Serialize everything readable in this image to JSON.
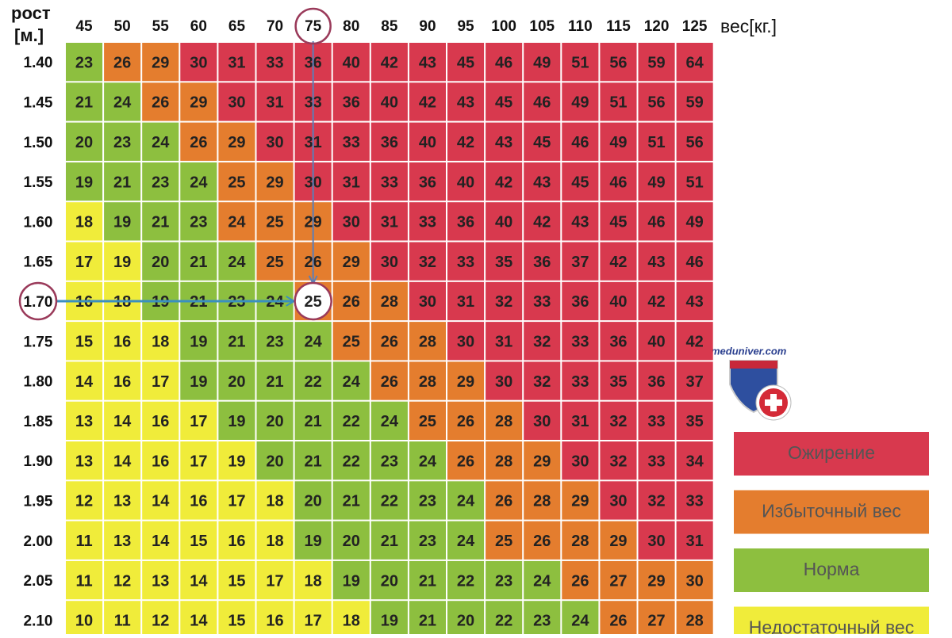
{
  "header": {
    "height_label": "рост",
    "height_unit": "[м.]",
    "weight_label": "вес[кг.]"
  },
  "weights": [
    45,
    50,
    55,
    60,
    65,
    70,
    75,
    80,
    85,
    90,
    95,
    100,
    105,
    110,
    115,
    120,
    125
  ],
  "rows": [
    {
      "height": "1.40",
      "values": [
        23,
        26,
        29,
        30,
        31,
        33,
        36,
        40,
        42,
        43,
        45,
        46,
        49,
        51,
        56,
        59,
        64
      ],
      "levels": [
        2,
        1,
        1,
        0,
        0,
        0,
        0,
        0,
        0,
        0,
        0,
        0,
        0,
        0,
        0,
        0,
        0
      ]
    },
    {
      "height": "1.45",
      "values": [
        21,
        24,
        26,
        29,
        30,
        31,
        33,
        36,
        40,
        42,
        43,
        45,
        46,
        49,
        51,
        56,
        59
      ],
      "levels": [
        2,
        2,
        1,
        1,
        0,
        0,
        0,
        0,
        0,
        0,
        0,
        0,
        0,
        0,
        0,
        0,
        0
      ]
    },
    {
      "height": "1.50",
      "values": [
        20,
        23,
        24,
        26,
        29,
        30,
        31,
        33,
        36,
        40,
        42,
        43,
        45,
        46,
        49,
        51,
        56
      ],
      "levels": [
        2,
        2,
        2,
        1,
        1,
        0,
        0,
        0,
        0,
        0,
        0,
        0,
        0,
        0,
        0,
        0,
        0
      ]
    },
    {
      "height": "1.55",
      "values": [
        19,
        21,
        23,
        24,
        25,
        29,
        30,
        31,
        33,
        36,
        40,
        42,
        43,
        45,
        46,
        49,
        51
      ],
      "levels": [
        2,
        2,
        2,
        2,
        1,
        1,
        0,
        0,
        0,
        0,
        0,
        0,
        0,
        0,
        0,
        0,
        0
      ]
    },
    {
      "height": "1.60",
      "values": [
        18,
        19,
        21,
        23,
        24,
        25,
        29,
        30,
        31,
        33,
        36,
        40,
        42,
        43,
        45,
        46,
        49
      ],
      "levels": [
        3,
        2,
        2,
        2,
        1,
        1,
        1,
        0,
        0,
        0,
        0,
        0,
        0,
        0,
        0,
        0,
        0
      ]
    },
    {
      "height": "1.65",
      "values": [
        17,
        19,
        20,
        21,
        24,
        25,
        26,
        29,
        30,
        32,
        33,
        35,
        36,
        37,
        42,
        43,
        46
      ],
      "levels": [
        3,
        3,
        2,
        2,
        2,
        1,
        1,
        1,
        0,
        0,
        0,
        0,
        0,
        0,
        0,
        0,
        0
      ]
    },
    {
      "height": "1.70",
      "values": [
        16,
        18,
        19,
        21,
        23,
        24,
        25,
        26,
        28,
        30,
        31,
        32,
        33,
        36,
        40,
        42,
        43
      ],
      "levels": [
        3,
        3,
        2,
        2,
        2,
        2,
        1,
        1,
        1,
        0,
        0,
        0,
        0,
        0,
        0,
        0,
        0
      ]
    },
    {
      "height": "1.75",
      "values": [
        15,
        16,
        18,
        19,
        21,
        23,
        24,
        25,
        26,
        28,
        30,
        31,
        32,
        33,
        36,
        40,
        42
      ],
      "levels": [
        3,
        3,
        3,
        2,
        2,
        2,
        2,
        1,
        1,
        1,
        0,
        0,
        0,
        0,
        0,
        0,
        0
      ]
    },
    {
      "height": "1.80",
      "values": [
        14,
        16,
        17,
        19,
        20,
        21,
        22,
        24,
        26,
        28,
        29,
        30,
        32,
        33,
        35,
        36,
        37
      ],
      "levels": [
        3,
        3,
        3,
        2,
        2,
        2,
        2,
        2,
        1,
        1,
        1,
        0,
        0,
        0,
        0,
        0,
        0
      ]
    },
    {
      "height": "1.85",
      "values": [
        13,
        14,
        16,
        17,
        19,
        20,
        21,
        22,
        24,
        25,
        26,
        28,
        30,
        31,
        32,
        33,
        35
      ],
      "levels": [
        3,
        3,
        3,
        3,
        2,
        2,
        2,
        2,
        2,
        1,
        1,
        1,
        0,
        0,
        0,
        0,
        0
      ]
    },
    {
      "height": "1.90",
      "values": [
        13,
        14,
        16,
        17,
        19,
        20,
        21,
        22,
        23,
        24,
        26,
        28,
        29,
        30,
        32,
        33,
        34
      ],
      "levels": [
        3,
        3,
        3,
        3,
        3,
        2,
        2,
        2,
        2,
        2,
        1,
        1,
        1,
        0,
        0,
        0,
        0
      ]
    },
    {
      "height": "1.95",
      "values": [
        12,
        13,
        14,
        16,
        17,
        18,
        20,
        21,
        22,
        23,
        24,
        26,
        28,
        29,
        30,
        32,
        33
      ],
      "levels": [
        3,
        3,
        3,
        3,
        3,
        3,
        2,
        2,
        2,
        2,
        2,
        1,
        1,
        1,
        0,
        0,
        0
      ]
    },
    {
      "height": "2.00",
      "values": [
        11,
        13,
        14,
        15,
        16,
        18,
        19,
        20,
        21,
        23,
        24,
        25,
        26,
        28,
        29,
        30,
        31
      ],
      "levels": [
        3,
        3,
        3,
        3,
        3,
        3,
        2,
        2,
        2,
        2,
        2,
        1,
        1,
        1,
        1,
        0,
        0
      ]
    },
    {
      "height": "2.05",
      "values": [
        11,
        12,
        13,
        14,
        15,
        17,
        18,
        19,
        20,
        21,
        22,
        23,
        24,
        26,
        27,
        29,
        30
      ],
      "levels": [
        3,
        3,
        3,
        3,
        3,
        3,
        3,
        2,
        2,
        2,
        2,
        2,
        2,
        1,
        1,
        1,
        1
      ]
    },
    {
      "height": "2.10",
      "values": [
        10,
        11,
        12,
        14,
        15,
        16,
        17,
        18,
        19,
        21,
        20,
        22,
        23,
        24,
        26,
        27,
        28
      ],
      "levels": [
        3,
        3,
        3,
        3,
        3,
        3,
        3,
        3,
        2,
        2,
        2,
        2,
        2,
        2,
        1,
        1,
        1
      ]
    }
  ],
  "legend": [
    {
      "label": "Ожирение",
      "color": "#d8394e"
    },
    {
      "label": "Избыточный вес",
      "color": "#e47d2e"
    },
    {
      "label": "Норма",
      "color": "#8dbf3f"
    },
    {
      "label": "Недостаточный вес",
      "color": "#f0ec3a"
    }
  ],
  "watermark": "meduniver.com"
}
